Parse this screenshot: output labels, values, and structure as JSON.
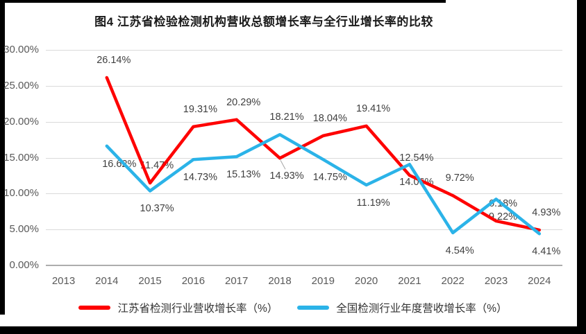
{
  "chart_data": {
    "type": "line",
    "title": "图4 江苏省检验检测机构营收总额增长率与全行业增长率的比较",
    "categories": [
      "2013",
      "2014",
      "2015",
      "2016",
      "2017",
      "2018",
      "2019",
      "2020",
      "2021",
      "2022",
      "2023",
      "2024"
    ],
    "y_axis": {
      "min": 0,
      "max": 30,
      "step": 5,
      "ticks": [
        "0.00%",
        "5.00%",
        "10.00%",
        "15.00%",
        "20.00%",
        "25.00%",
        "30.00%"
      ]
    },
    "grid": true,
    "legend_position": "bottom",
    "label_format": "percent_2dp",
    "colors": {
      "gridline": "#dadada",
      "axis_line": "#adadad",
      "tick_text": "#595959",
      "data_label_text": "#3f3f3f"
    },
    "series": [
      {
        "name": "江苏省检测行业营收增长率（%）",
        "color": "#fe0000",
        "values": [
          null,
          26.14,
          11.47,
          19.31,
          20.29,
          14.93,
          18.04,
          19.41,
          12.54,
          9.72,
          6.18,
          4.93
        ],
        "label_side": "above",
        "label_overrides": {
          "2018": {
            "side": "below",
            "leader": true
          }
        }
      },
      {
        "name": "全国检测行业年度营收增长率（%）",
        "color": "#2bb3e8",
        "values": [
          null,
          16.62,
          10.37,
          14.73,
          15.13,
          18.21,
          14.75,
          11.19,
          14.06,
          4.54,
          9.22,
          4.41
        ],
        "label_side": "below",
        "label_overrides": {
          "2014": {
            "dx": 8
          },
          "2018": {
            "side": "above"
          }
        }
      }
    ]
  }
}
